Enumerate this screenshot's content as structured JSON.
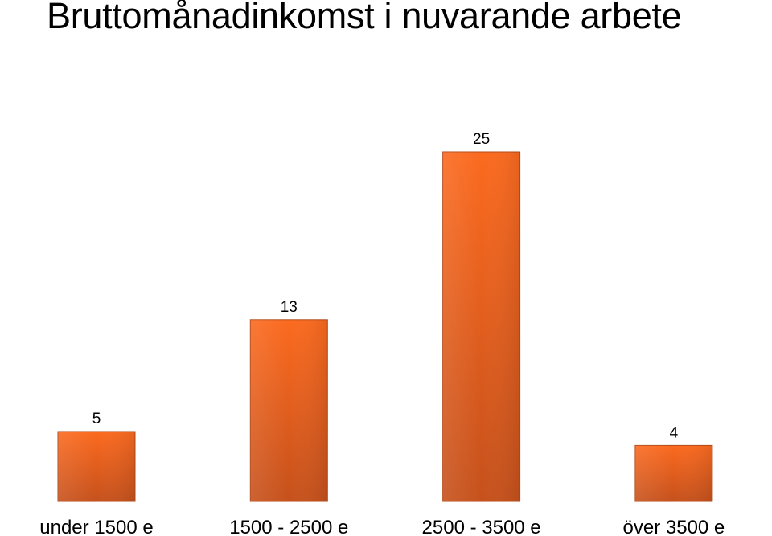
{
  "chart_data": {
    "type": "bar",
    "title": "Bruttomånadinkomst i nuvarande arbete",
    "categories": [
      "under 1500 e",
      "1500 - 2500 e",
      "2500 - 3500 e",
      "över 3500 e"
    ],
    "values": [
      5,
      13,
      25,
      4
    ],
    "xlabel": "",
    "ylabel": "",
    "ylim": [
      0,
      25
    ],
    "grid": false,
    "legend": "none",
    "data_labels": [
      "5",
      "13",
      "25",
      "4"
    ],
    "bar_color": "#fb6a1f",
    "bar_color_dark": "#c6511c"
  }
}
